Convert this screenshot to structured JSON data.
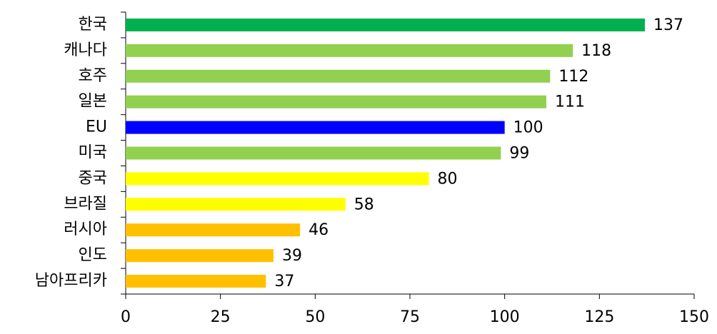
{
  "chart_data": {
    "type": "hbar",
    "categories": [
      "한국",
      "캐나다",
      "호주",
      "일본",
      "EU",
      "미국",
      "중국",
      "브라질",
      "러시아",
      "인도",
      "남아프리카"
    ],
    "values": [
      137,
      118,
      112,
      111,
      100,
      99,
      80,
      58,
      46,
      39,
      37
    ],
    "colors": [
      "#00b050",
      "#92d050",
      "#92d050",
      "#92d050",
      "#0000ff",
      "#92d050",
      "#ffff00",
      "#ffff00",
      "#ffc000",
      "#ffc000",
      "#ffc000"
    ],
    "xlim": [
      0,
      150
    ],
    "xticks": [
      0,
      25,
      50,
      75,
      100,
      125,
      150
    ],
    "grid": false
  }
}
